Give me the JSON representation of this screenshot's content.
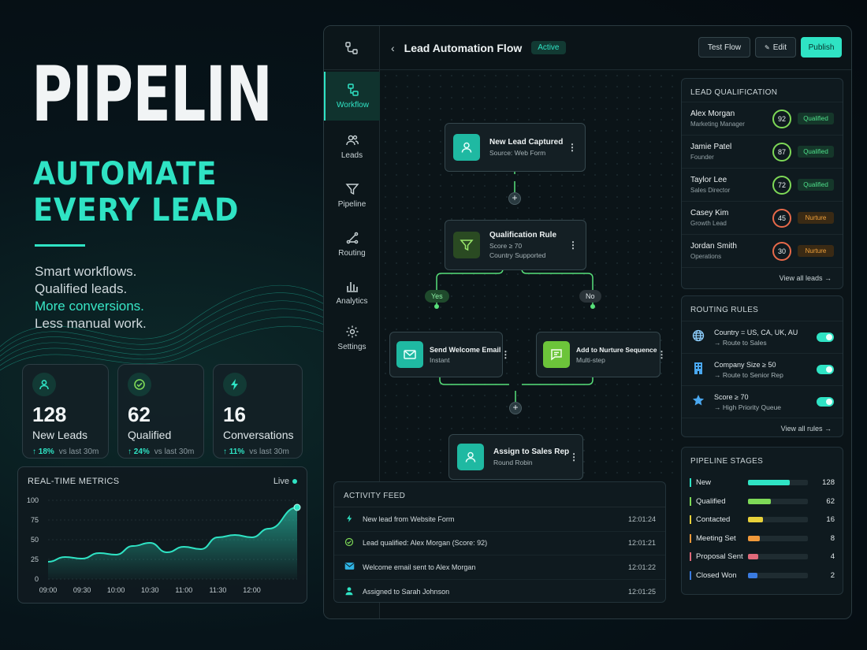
{
  "hero": {
    "title": "PIPELIN",
    "subtitle_line1": "AUTOMATE",
    "subtitle_line2": "EVERY LEAD",
    "tagline": [
      "Smart workflows.",
      "Qualified leads.",
      "More conversions.",
      "Less manual work."
    ]
  },
  "stats": [
    {
      "icon": "users-icon",
      "value": "128",
      "label": "New Leads",
      "trend": "18%",
      "period": "vs last 30m"
    },
    {
      "icon": "check-circle-icon",
      "value": "62",
      "label": "Qualified",
      "trend": "24%",
      "period": "vs last 30m"
    },
    {
      "icon": "lightning-icon",
      "value": "16",
      "label": "Conversations",
      "trend": "11%",
      "period": "vs last 30m"
    }
  ],
  "metrics": {
    "title": "REAL-TIME METRICS",
    "live_label": "Live"
  },
  "chart_data": {
    "type": "area",
    "x": [
      "09:00",
      "09:15",
      "09:30",
      "09:45",
      "10:00",
      "10:15",
      "10:30",
      "10:45",
      "11:00",
      "11:15",
      "11:30",
      "11:45",
      "12:00",
      "12:15",
      "12:40"
    ],
    "values": [
      22,
      28,
      26,
      33,
      31,
      42,
      46,
      34,
      41,
      38,
      53,
      56,
      53,
      64,
      91
    ],
    "tick_labels": [
      "09:00",
      "09:30",
      "10:00",
      "10:30",
      "11:00",
      "11:30",
      "12:00"
    ],
    "y_ticks": [
      0,
      25,
      50,
      75,
      100
    ],
    "ylim": [
      0,
      100
    ],
    "color": "#2fe3c4"
  },
  "nav": {
    "items": [
      {
        "label": "Workflow",
        "icon": "workflow-icon",
        "active": true
      },
      {
        "label": "Leads",
        "icon": "users-icon",
        "active": false
      },
      {
        "label": "Pipeline",
        "icon": "filter-icon",
        "active": false
      },
      {
        "label": "Routing",
        "icon": "routing-icon",
        "active": false
      },
      {
        "label": "Analytics",
        "icon": "bar-chart-icon",
        "active": false
      },
      {
        "label": "Settings",
        "icon": "gear-icon",
        "active": false
      }
    ]
  },
  "topbar": {
    "title": "Lead Automation Flow",
    "status": "Active",
    "test_label": "Test Flow",
    "edit_label": "Edit",
    "publish_label": "Publish"
  },
  "flow": {
    "start": {
      "title": "New Lead Captured",
      "sub": "Source: Web Form"
    },
    "rule": {
      "title": "Qualification Rule",
      "sub1": "Score ≥ 70",
      "sub2": "Country Supported"
    },
    "yes_label": "Yes",
    "no_label": "No",
    "welcome": {
      "title": "Send Welcome Email",
      "sub": "Instant"
    },
    "nurture": {
      "title": "Add to Nurture Sequence",
      "sub": "Multi-step"
    },
    "assign": {
      "title": "Assign to Sales Rep",
      "sub": "Round Robin"
    },
    "add_symbol": "+",
    "menu_symbol": "⋮"
  },
  "feed": {
    "title": "ACTIVITY FEED",
    "rows": [
      {
        "icon": "lightning-icon",
        "text": "New lead from Website Form",
        "time": "12:01:24"
      },
      {
        "icon": "check-circle-icon",
        "text": "Lead qualified: Alex Morgan (Score: 92)",
        "time": "12:01:21"
      },
      {
        "icon": "mail-icon",
        "text": "Welcome email sent to Alex Morgan",
        "time": "12:01:22"
      },
      {
        "icon": "user-icon",
        "text": "Assigned to Sarah Johnson",
        "time": "12:01:25"
      }
    ]
  },
  "qualification": {
    "title": "LEAD QUALIFICATION",
    "leads": [
      {
        "name": "Alex Morgan",
        "role": "Marketing Manager",
        "score": "92",
        "status": "Qualified"
      },
      {
        "name": "Jamie Patel",
        "role": "Founder",
        "score": "87",
        "status": "Qualified"
      },
      {
        "name": "Taylor Lee",
        "role": "Sales Director",
        "score": "72",
        "status": "Qualified"
      },
      {
        "name": "Casey Kim",
        "role": "Growth Lead",
        "score": "45",
        "status": "Nurture"
      },
      {
        "name": "Jordan Smith",
        "role": "Operations",
        "score": "30",
        "status": "Nurture"
      }
    ],
    "link": "View all leads →"
  },
  "routing": {
    "title": "ROUTING RULES",
    "rules": [
      {
        "icon": "globe-icon",
        "condition": "Country = US, CA, UK, AU",
        "action": "→ Route to Sales"
      },
      {
        "icon": "building-icon",
        "condition": "Company Size ≥ 50",
        "action": "→ Route to Senior Rep"
      },
      {
        "icon": "star-icon",
        "condition": "Score ≥ 70",
        "action": "→ High Priority Queue"
      }
    ],
    "link": "View all rules →"
  },
  "stages": {
    "title": "PIPELINE STAGES",
    "rows": [
      {
        "name": "New",
        "value": "128",
        "fraction": 1.0,
        "color": "#2fe3c4"
      },
      {
        "name": "Qualified",
        "value": "62",
        "fraction": 0.55,
        "color": "#7ed957"
      },
      {
        "name": "Contacted",
        "value": "16",
        "fraction": 0.36,
        "color": "#e8d13a"
      },
      {
        "name": "Meeting Set",
        "value": "8",
        "fraction": 0.29,
        "color": "#f0993a"
      },
      {
        "name": "Proposal Sent",
        "value": "4",
        "fraction": 0.24,
        "color": "#e06a7a"
      },
      {
        "name": "Closed Won",
        "value": "2",
        "fraction": 0.22,
        "color": "#3a7be0"
      }
    ]
  }
}
